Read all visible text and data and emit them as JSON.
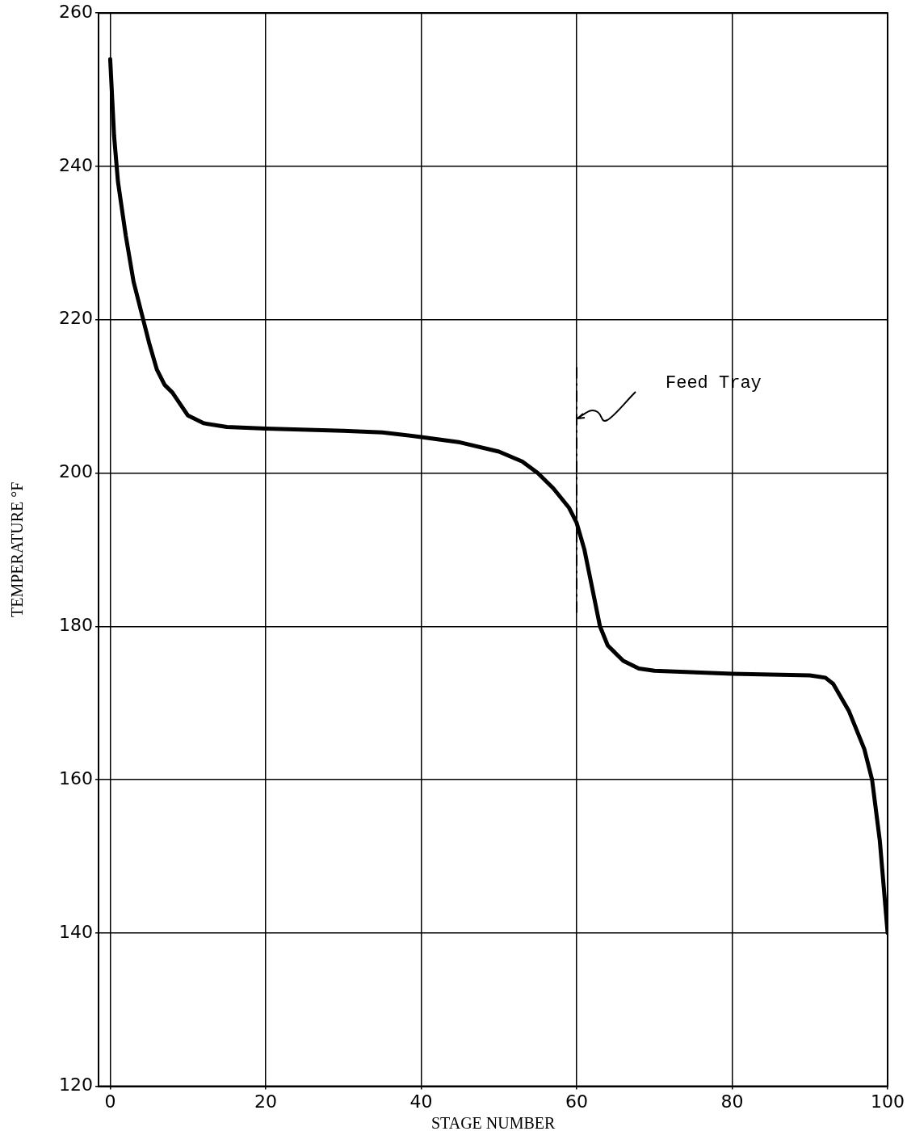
{
  "chart_data": {
    "type": "line",
    "xlabel": "STAGE NUMBER",
    "ylabel": "TEMPERATURE °F",
    "series": [
      {
        "color": "#000000",
        "x": [
          0,
          0.5,
          1,
          2,
          3,
          4,
          5,
          6,
          7,
          8,
          9,
          10,
          12,
          15,
          20,
          30,
          35,
          40,
          45,
          50,
          53,
          55,
          57,
          59,
          60,
          61,
          62,
          63,
          64,
          66,
          68,
          70,
          80,
          90,
          92,
          93,
          95,
          97,
          98,
          99,
          100
        ],
        "values": [
          254,
          244,
          238,
          231,
          225,
          221,
          217,
          213.5,
          211.5,
          210.5,
          209,
          207.5,
          206.5,
          206,
          205.8,
          205.5,
          205.3,
          204.7,
          204,
          202.8,
          201.5,
          200,
          198,
          195.5,
          193.5,
          190,
          185,
          180,
          177.5,
          175.5,
          174.5,
          174.2,
          173.8,
          173.6,
          173.3,
          172.5,
          169,
          164,
          160,
          152,
          140
        ]
      }
    ],
    "xlim": [
      -1.5,
      100
    ],
    "xticks": [
      0,
      20,
      40,
      60,
      80,
      100
    ],
    "ylim": [
      120,
      260
    ],
    "yticks": [
      120,
      140,
      160,
      180,
      200,
      220,
      240,
      260
    ],
    "grid": true,
    "legend": false,
    "marker": "none",
    "line_style": "solid",
    "ref_lines": [
      {
        "axis": "x",
        "value": 60,
        "label": "Feed Tray",
        "color": "#000000",
        "line_style": "dashed"
      }
    ]
  }
}
